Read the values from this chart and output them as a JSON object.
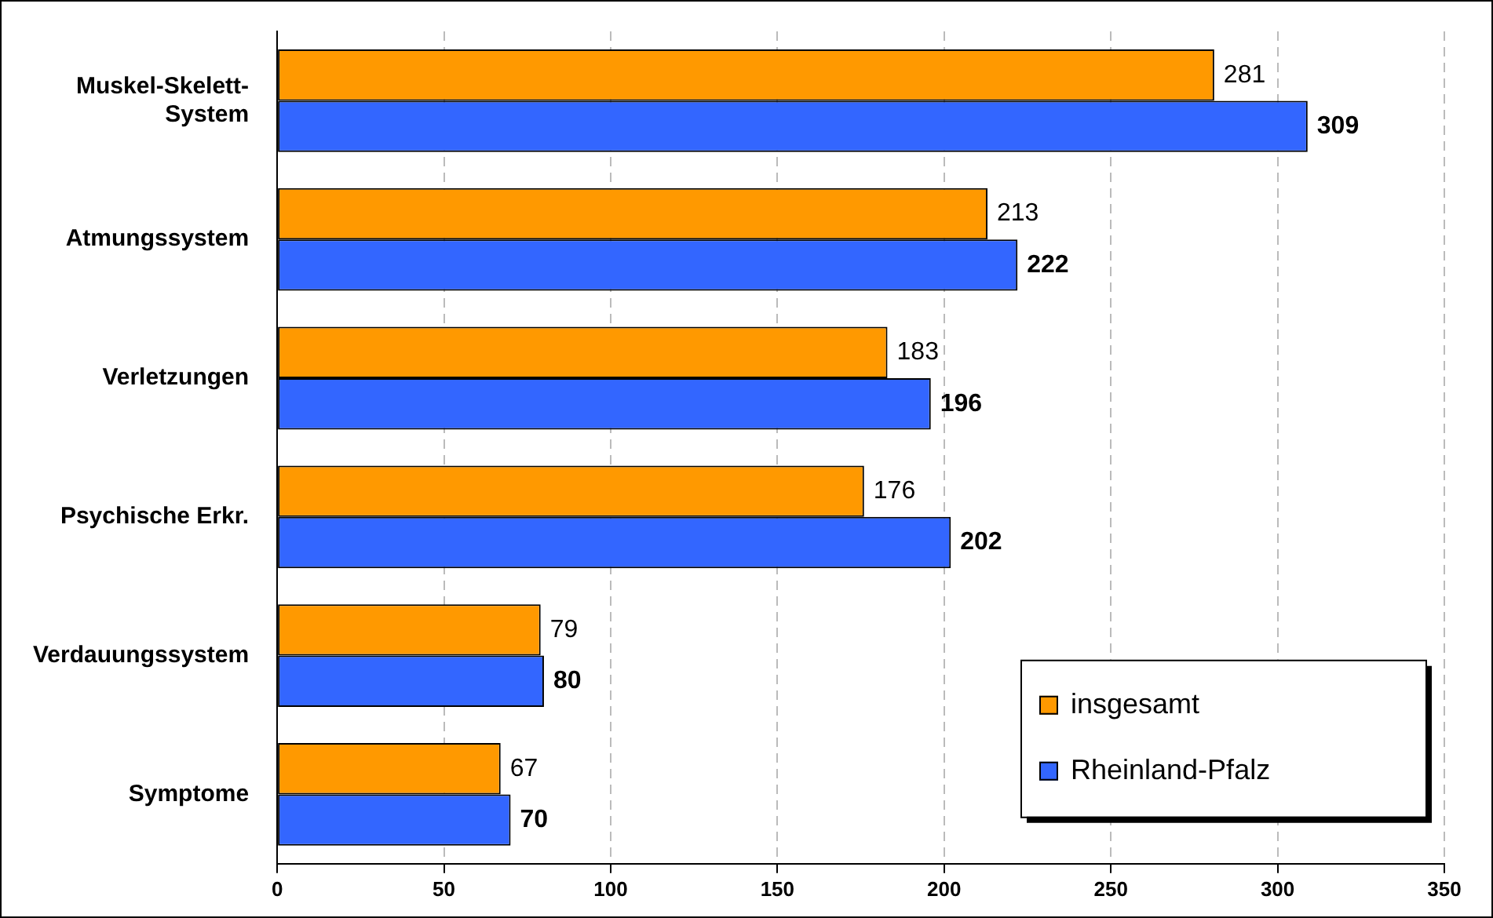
{
  "chart_data": {
    "type": "bar",
    "orientation": "horizontal",
    "categories": [
      "Muskel-Skelett-System",
      "Atmungssystem",
      "Verletzungen",
      "Psychische Erkr.",
      "Verdauungssystem",
      "Symptome"
    ],
    "series": [
      {
        "name": "insgesamt",
        "color": "#ff9900",
        "values": [
          281,
          213,
          183,
          176,
          79,
          67
        ]
      },
      {
        "name": "Rheinland-Pfalz",
        "color": "#3366ff",
        "values": [
          309,
          222,
          196,
          202,
          80,
          70
        ]
      }
    ],
    "xlim": [
      0,
      350
    ],
    "xticks": [
      0,
      50,
      100,
      150,
      200,
      250,
      300,
      350
    ],
    "grid": "x",
    "legend": "bottom right",
    "data_labels": true
  }
}
